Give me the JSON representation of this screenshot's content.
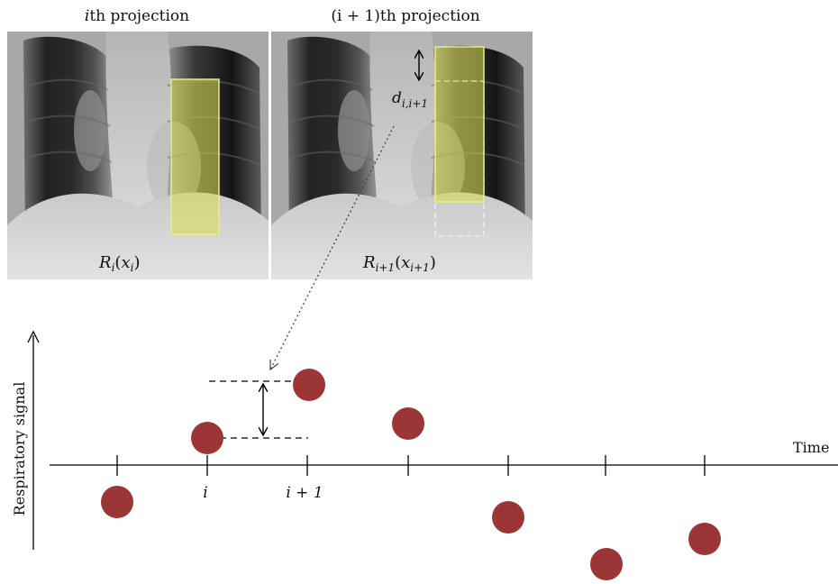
{
  "panels": {
    "left": {
      "title_italic": "i",
      "title_rest": "th projection",
      "label_main": "R",
      "label_sub": "i",
      "label_arg": "x",
      "label_arg_sub": "i"
    },
    "right": {
      "title_paren": "(i + 1)",
      "title_rest": "th projection",
      "label_main": "R",
      "label_sub": "i+1",
      "label_arg": "x",
      "label_arg_sub": "i+1",
      "displacement_main": "d",
      "displacement_sub": "i,i+1"
    }
  },
  "plot": {
    "y_axis_label": "Respiratory signal",
    "x_axis_label": "Time",
    "tick_label_i": "i",
    "tick_label_i1": "i + 1"
  },
  "colors": {
    "dot": "#9c3535",
    "roi_fill": "#d9e04a",
    "axis": "#000000"
  }
}
